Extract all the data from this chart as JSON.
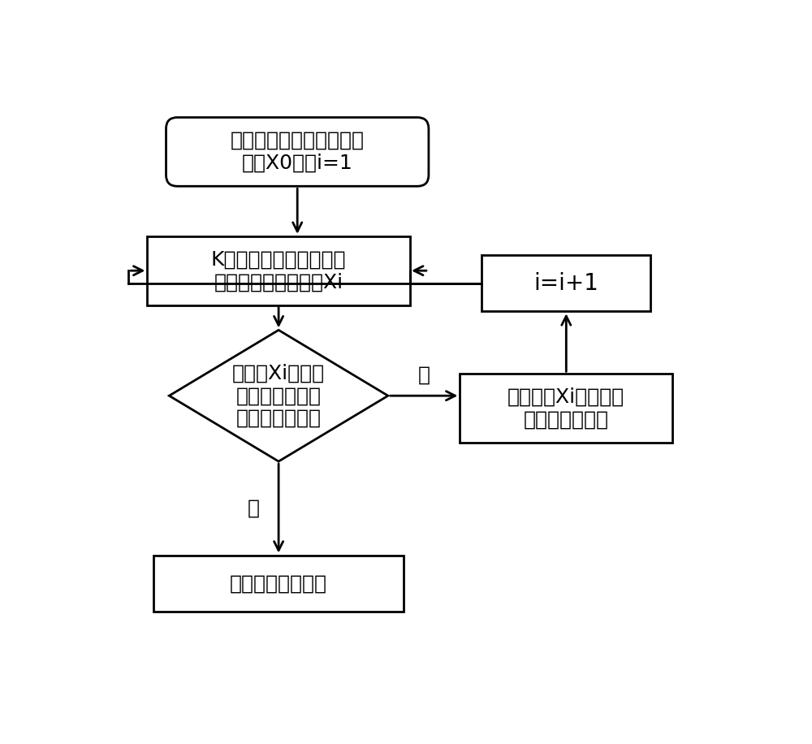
{
  "bg_color": "#ffffff",
  "box_fill": "#ffffff",
  "box_edge": "#000000",
  "arrow_color": "#000000",
  "font_color": "#000000",
  "font_size": 18,
  "small_font_size": 16,
  "box1_text": "输入预处理后的车头时距\n序列X0，令i=1",
  "box2_text": "K均值算法识别并剔除第\n一类异常值，得序列Xi",
  "diamond_text": "对序列Xi进行正\n态检验，判断是\n否服从正态分布",
  "box3_text": "剔除序列Xi中距平均\n值最远的样本点",
  "box4_text": "i=i+1",
  "box5_text": "提取饱和车头时距",
  "label_no": "否",
  "label_yes": "是"
}
